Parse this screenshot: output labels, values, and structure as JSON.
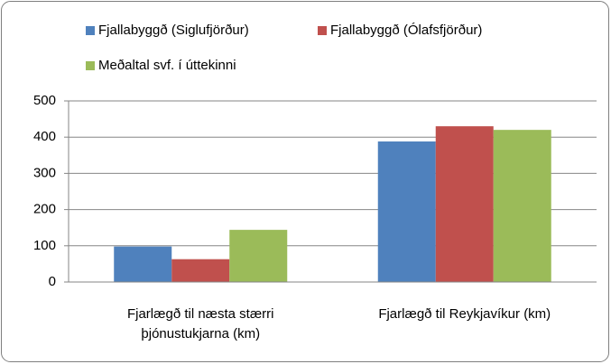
{
  "chart_data": {
    "type": "bar",
    "categories": [
      "Fjarlægð til næsta stærri þjónustukjarna (km)",
      "Fjarlægð til Reykjavíkur (km)"
    ],
    "series": [
      {
        "name": "Fjallabyggð (Siglufjörður)",
        "color": "#4f81bd",
        "values": [
          98,
          388
        ]
      },
      {
        "name": "Fjallabyggð (Ólafsfjörður)",
        "color": "#c0504d",
        "values": [
          63,
          430
        ]
      },
      {
        "name": "Meðaltal svf. í úttekinni",
        "color": "#9bbb59",
        "values": [
          144,
          420
        ]
      }
    ],
    "ylim": [
      0,
      500
    ],
    "yticks": [
      0,
      100,
      200,
      300,
      400,
      500
    ],
    "grid": true,
    "legend": "top"
  }
}
